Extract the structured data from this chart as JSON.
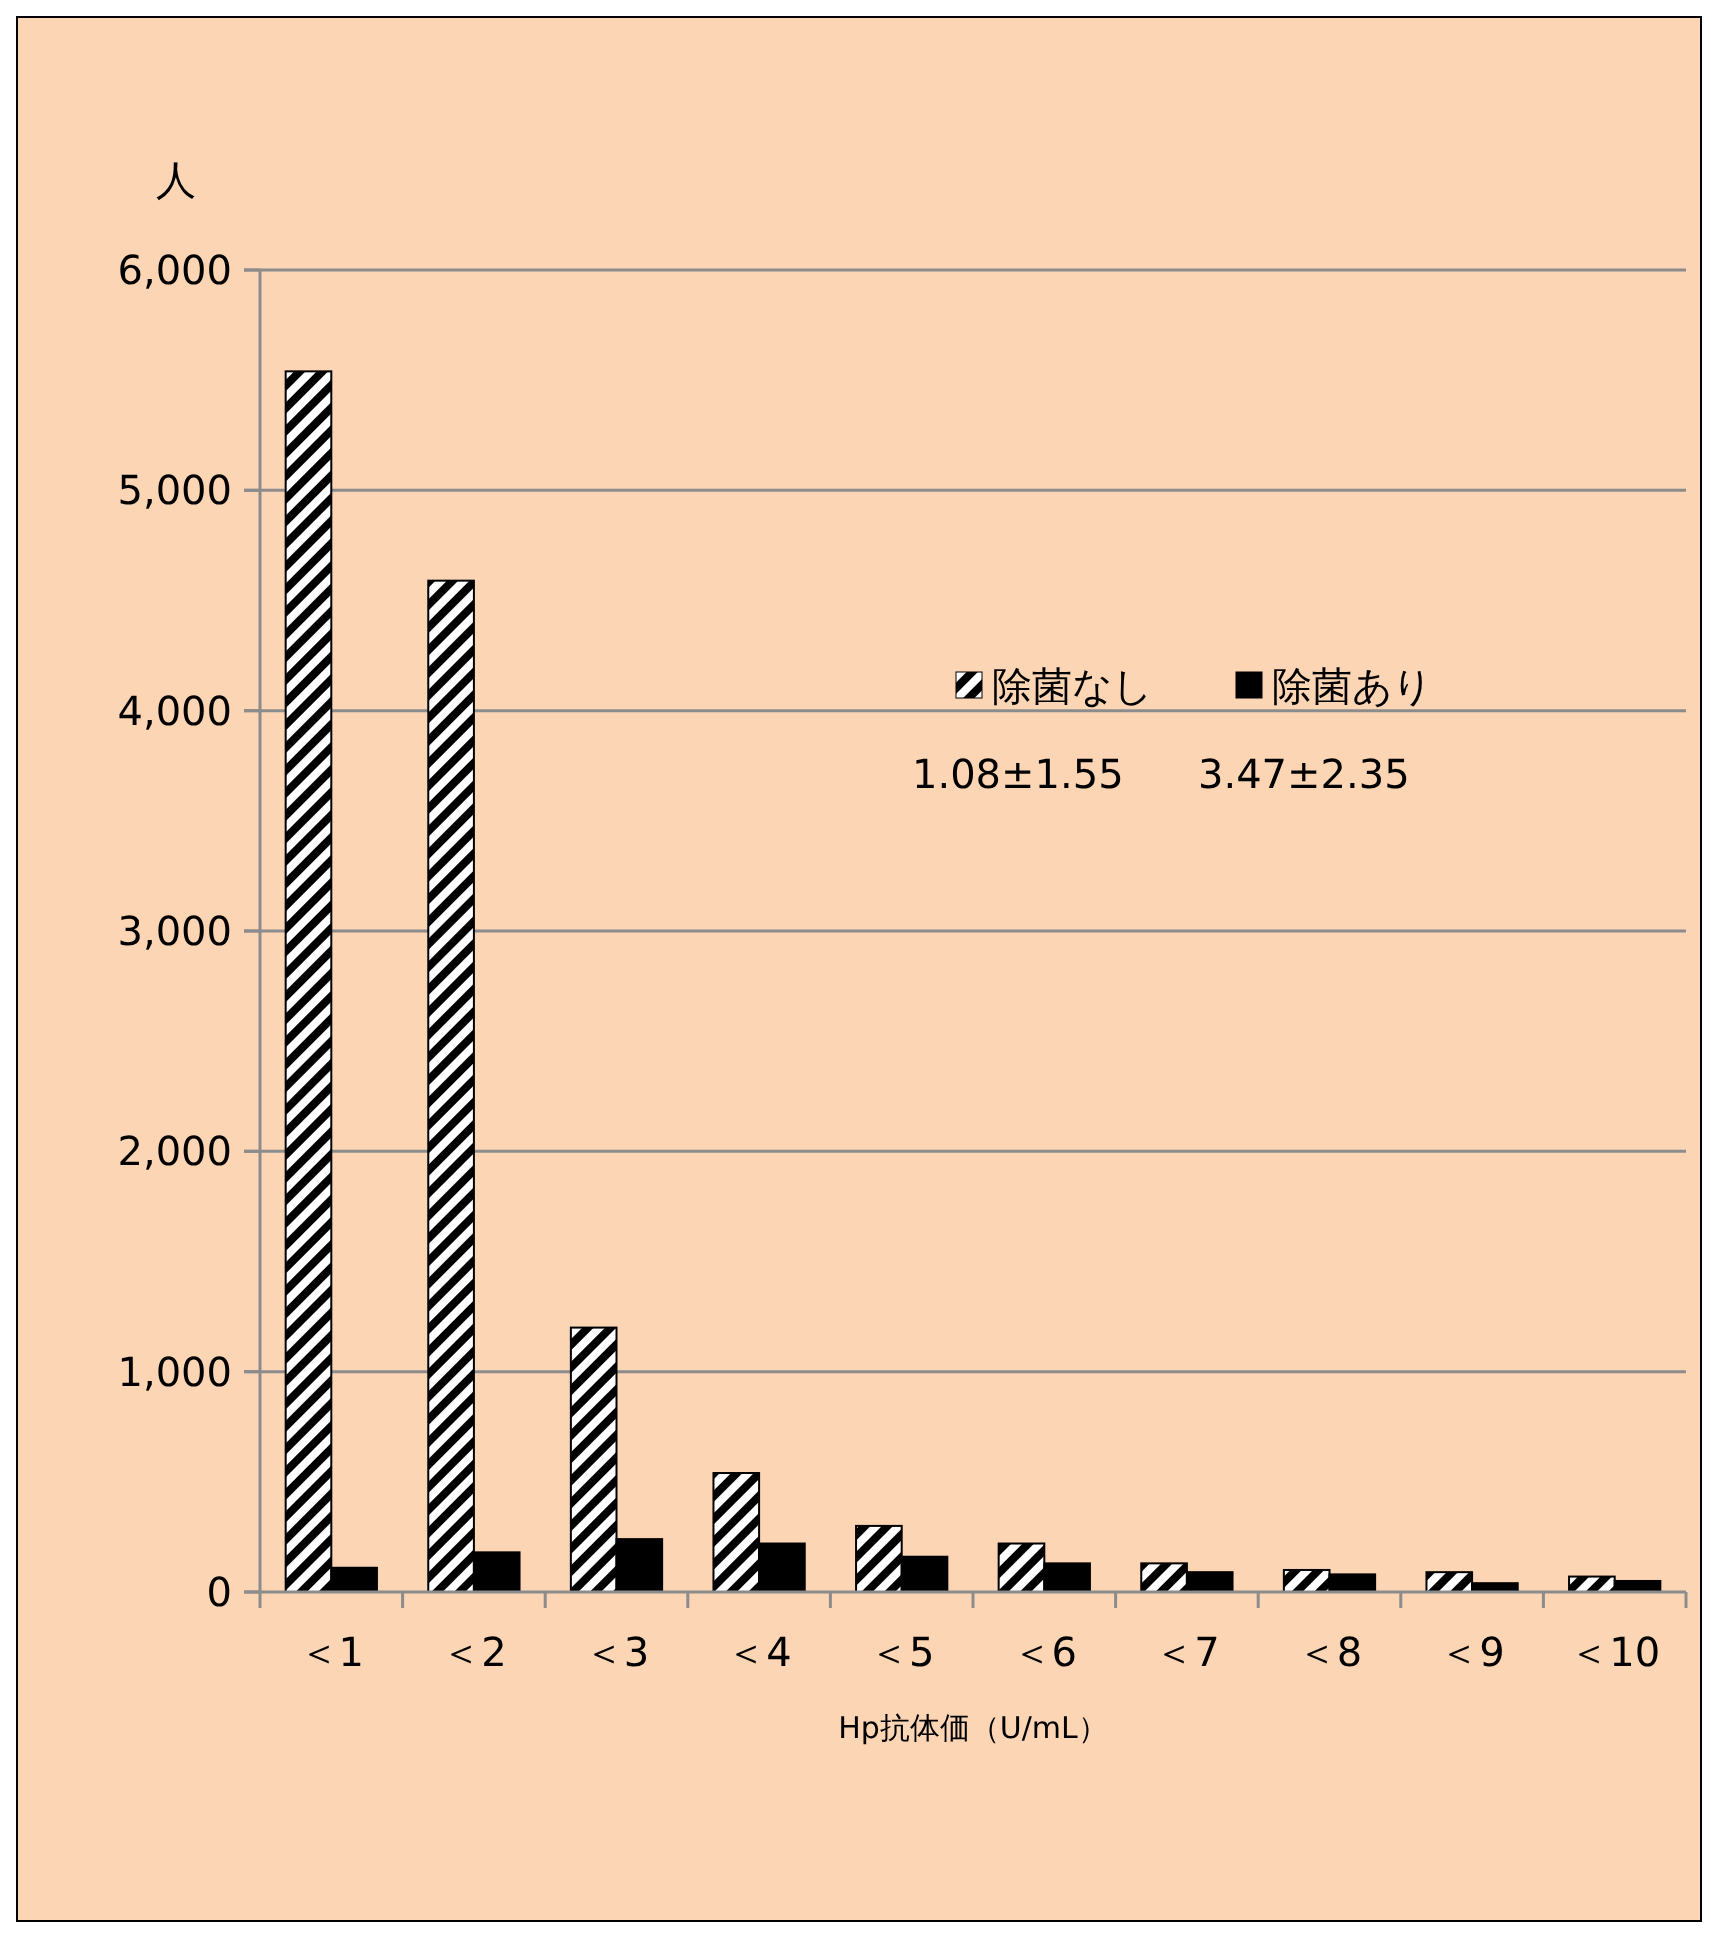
{
  "chart_data": {
    "type": "bar",
    "ylabel": "人",
    "xlabel": "Hp抗体価（U/mL）",
    "categories": [
      "＜1",
      "＜2",
      "＜3",
      "＜4",
      "＜5",
      "＜6",
      "＜7",
      "＜8",
      "＜9",
      "＜10"
    ],
    "series": [
      {
        "name": "除菌なし",
        "color": "#000000",
        "values": [
          5540,
          4590,
          1200,
          540,
          300,
          220,
          130,
          100,
          90,
          70
        ]
      },
      {
        "name": "除菌あり",
        "color": "#000000",
        "values": [
          110,
          180,
          240,
          220,
          160,
          130,
          90,
          80,
          40,
          50
        ]
      }
    ],
    "ylim": [
      0,
      6000
    ],
    "yticks": [
      {
        "value": 0,
        "label": "0"
      },
      {
        "value": 1000,
        "label": "1,000"
      },
      {
        "value": 2000,
        "label": "2,000"
      },
      {
        "value": 3000,
        "label": "3,000"
      },
      {
        "value": 4000,
        "label": "4,000"
      },
      {
        "value": 5000,
        "label": "5,000"
      },
      {
        "value": 6000,
        "label": "6,000"
      }
    ],
    "grid": "y",
    "legend": "top right",
    "annotations": [
      "1.08±1.55",
      "3.47±2.35"
    ]
  }
}
